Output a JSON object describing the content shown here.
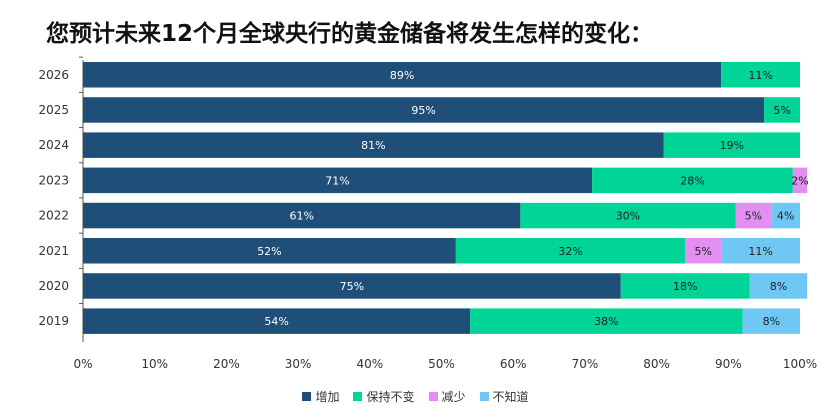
{
  "title": "您预计未来12个月全球央行的黄金储备将发生怎样的变化：",
  "chart_data": {
    "type": "bar",
    "orientation": "horizontal",
    "stacked": "percent",
    "title": "您预计未来12个月全球央行的黄金储备将发生怎样的变化：",
    "categories": [
      "2026",
      "2025",
      "2024",
      "2023",
      "2022",
      "2021",
      "2020",
      "2019"
    ],
    "series": [
      {
        "name": "增加",
        "color": "#1f4e79",
        "values": [
          89,
          95,
          81,
          71,
          61,
          52,
          75,
          54
        ]
      },
      {
        "name": "保持不变",
        "color": "#00d496",
        "values": [
          11,
          5,
          19,
          28,
          30,
          32,
          18,
          38
        ]
      },
      {
        "name": "减少",
        "color": "#e38ff2",
        "values": [
          0,
          0,
          0,
          2,
          5,
          5,
          0,
          0
        ]
      },
      {
        "name": "不知道",
        "color": "#6fc8f4",
        "values": [
          0,
          0,
          0,
          0,
          4,
          11,
          8,
          8
        ]
      }
    ],
    "data_labels": [
      [
        "89%",
        "11%",
        "",
        ""
      ],
      [
        "95%",
        "5%",
        "",
        ""
      ],
      [
        "81%",
        "19%",
        "",
        ""
      ],
      [
        "71%",
        "28%",
        "2%",
        ""
      ],
      [
        "61%",
        "30%",
        "5%",
        "4%"
      ],
      [
        "52%",
        "32%",
        "5%",
        "11%"
      ],
      [
        "75%",
        "18%",
        "",
        "8%"
      ],
      [
        "54%",
        "38%",
        "",
        "8%"
      ]
    ],
    "x_ticks": [
      "0%",
      "10%",
      "20%",
      "30%",
      "40%",
      "50%",
      "60%",
      "70%",
      "80%",
      "90%",
      "100%"
    ],
    "xlim": [
      0,
      100
    ],
    "grid": false,
    "legend_position": "bottom"
  }
}
